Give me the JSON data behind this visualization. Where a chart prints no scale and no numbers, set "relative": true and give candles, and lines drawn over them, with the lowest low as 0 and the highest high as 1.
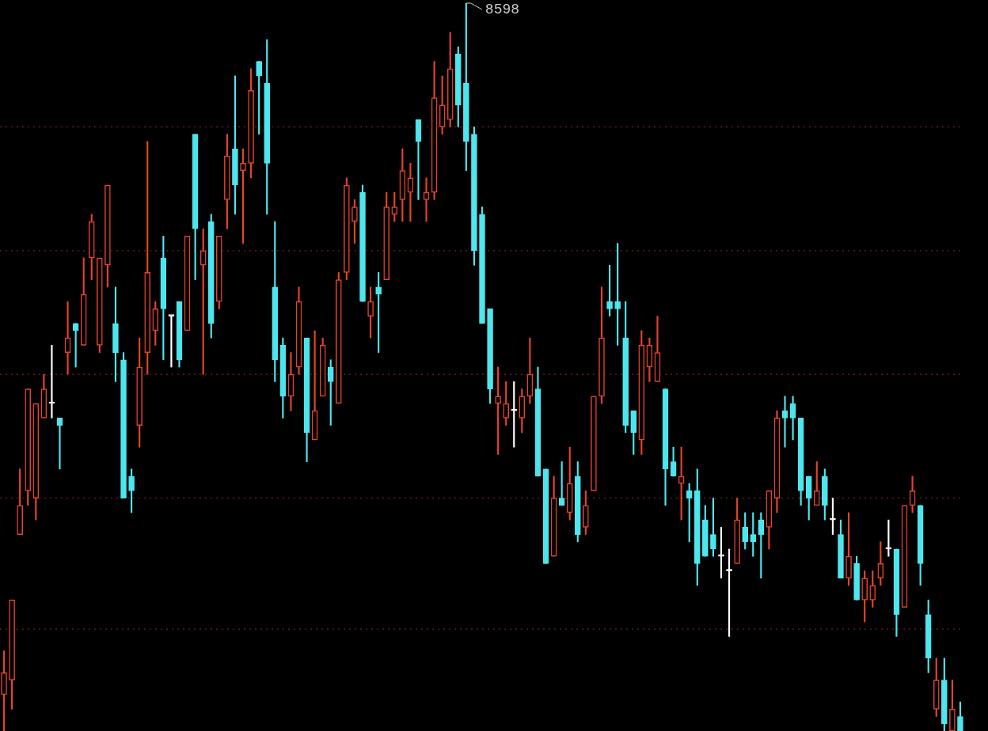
{
  "chart_data": {
    "type": "candlestick",
    "relative": true,
    "legend": false,
    "categories": [
      null,
      null,
      null,
      null,
      null,
      null,
      null,
      null,
      null,
      null,
      null,
      null,
      null,
      null,
      null,
      null,
      null,
      null,
      null,
      null,
      null,
      null,
      null,
      null,
      null,
      null,
      null,
      null,
      null,
      null,
      null,
      null,
      null,
      null,
      null,
      null,
      null,
      null,
      null,
      null,
      null,
      null,
      null,
      null,
      null,
      null,
      null,
      null,
      null,
      null,
      null,
      null,
      null,
      null,
      null,
      null,
      null,
      null,
      null,
      null,
      null,
      null,
      null,
      null,
      null,
      null,
      null,
      null,
      null,
      null,
      null,
      null,
      null,
      null,
      null,
      null,
      null,
      null,
      null,
      null,
      null,
      null,
      null,
      null,
      null,
      null,
      null,
      null,
      null,
      null,
      null,
      null,
      null,
      null,
      null,
      null,
      null,
      null,
      null,
      null,
      null,
      null,
      null,
      null,
      null,
      null,
      null,
      null,
      null,
      null,
      null,
      null,
      null,
      null,
      null,
      null,
      null,
      null,
      null,
      null,
      null
    ],
    "ohlc": [
      [
        0.05,
        0.11,
        0,
        0.08
      ],
      [
        0.07,
        0.18,
        0.03,
        0.18
      ],
      [
        0.27,
        0.36,
        0.27,
        0.31
      ],
      [
        0.33,
        0.47,
        0.31,
        0.47
      ],
      [
        0.32,
        0.45,
        0.29,
        0.45
      ],
      [
        0.43,
        0.49,
        0.43,
        0.47
      ],
      [
        0.45,
        0.53,
        0.43,
        0.45
      ],
      [
        0.43,
        0.43,
        0.36,
        0.42
      ],
      [
        0.52,
        0.59,
        0.49,
        0.54
      ],
      [
        0.56,
        0.56,
        0.5,
        0.55
      ],
      [
        0.53,
        0.65,
        0.53,
        0.6
      ],
      [
        0.65,
        0.71,
        0.62,
        0.7
      ],
      [
        0.53,
        0.65,
        0.52,
        0.65
      ],
      [
        0.64,
        0.75,
        0.61,
        0.75
      ],
      [
        0.56,
        0.61,
        0.48,
        0.52
      ],
      [
        0.51,
        0.52,
        0.32,
        0.32
      ],
      [
        0.35,
        0.36,
        0.3,
        0.33
      ],
      [
        0.42,
        0.54,
        0.39,
        0.5
      ],
      [
        0.52,
        0.81,
        0.49,
        0.63
      ],
      [
        0.55,
        0.59,
        0.53,
        0.58
      ],
      [
        0.65,
        0.68,
        0.51,
        0.58
      ],
      [
        0.57,
        0.57,
        0.5,
        0.57
      ],
      [
        0.59,
        0.59,
        0.5,
        0.51
      ],
      [
        0.55,
        0.68,
        0.55,
        0.68
      ],
      [
        0.82,
        0.82,
        0.62,
        0.69
      ],
      [
        0.64,
        0.69,
        0.49,
        0.66
      ],
      [
        0.7,
        0.71,
        0.54,
        0.56
      ],
      [
        0.59,
        0.68,
        0.58,
        0.68
      ],
      [
        0.73,
        0.82,
        0.69,
        0.79
      ],
      [
        0.8,
        0.9,
        0.71,
        0.75
      ],
      [
        0.77,
        0.8,
        0.67,
        0.78
      ],
      [
        0.78,
        0.91,
        0.76,
        0.88
      ],
      [
        0.92,
        0.92,
        0.82,
        0.9
      ],
      [
        0.89,
        0.95,
        0.71,
        0.78
      ],
      [
        0.61,
        0.7,
        0.48,
        0.51
      ],
      [
        0.53,
        0.54,
        0.43,
        0.46
      ],
      [
        0.46,
        0.52,
        0.44,
        0.49
      ],
      [
        0.5,
        0.61,
        0.49,
        0.59
      ],
      [
        0.54,
        0.54,
        0.37,
        0.41
      ],
      [
        0.4,
        0.55,
        0.4,
        0.44
      ],
      [
        0.46,
        0.54,
        0.46,
        0.53
      ],
      [
        0.5,
        0.51,
        0.42,
        0.48
      ],
      [
        0.45,
        0.63,
        0.45,
        0.62
      ],
      [
        0.63,
        0.76,
        0.62,
        0.75
      ],
      [
        0.7,
        0.73,
        0.67,
        0.72
      ],
      [
        0.74,
        0.75,
        0.59,
        0.59
      ],
      [
        0.57,
        0.61,
        0.54,
        0.59
      ],
      [
        0.61,
        0.63,
        0.52,
        0.6
      ],
      [
        0.62,
        0.74,
        0.62,
        0.72
      ],
      [
        0.71,
        0.74,
        0.7,
        0.72
      ],
      [
        0.73,
        0.8,
        0.7,
        0.77
      ],
      [
        0.74,
        0.78,
        0.7,
        0.76
      ],
      [
        0.84,
        0.84,
        0.73,
        0.81
      ],
      [
        0.73,
        0.76,
        0.7,
        0.74
      ],
      [
        0.74,
        0.92,
        0.73,
        0.87
      ],
      [
        0.83,
        0.9,
        0.82,
        0.86
      ],
      [
        0.84,
        0.96,
        0.83,
        0.91
      ],
      [
        0.93,
        0.94,
        0.83,
        0.86
      ],
      [
        0.89,
        1,
        0.77,
        0.81
      ],
      [
        0.82,
        0.83,
        0.64,
        0.66
      ],
      [
        0.71,
        0.72,
        0.56,
        0.56
      ],
      [
        0.58,
        0.58,
        0.45,
        0.47
      ],
      [
        0.45,
        0.5,
        0.38,
        0.46
      ],
      [
        0.43,
        0.48,
        0.42,
        0.45
      ],
      [
        0.44,
        0.48,
        0.39,
        0.44
      ],
      [
        0.43,
        0.47,
        0.41,
        0.46
      ],
      [
        0.46,
        0.54,
        0.45,
        0.49
      ],
      [
        0.47,
        0.5,
        0.35,
        0.35
      ],
      [
        0.36,
        0.36,
        0.23,
        0.23
      ],
      [
        0.24,
        0.35,
        0.24,
        0.32
      ],
      [
        0.32,
        0.37,
        0.31,
        0.31
      ],
      [
        0.3,
        0.39,
        0.29,
        0.34
      ],
      [
        0.35,
        0.37,
        0.26,
        0.27
      ],
      [
        0.28,
        0.33,
        0.27,
        0.31
      ],
      [
        0.33,
        0.46,
        0.33,
        0.46
      ],
      [
        0.46,
        0.61,
        0.45,
        0.54
      ],
      [
        0.59,
        0.64,
        0.57,
        0.58
      ],
      [
        0.59,
        0.67,
        0.53,
        0.58
      ],
      [
        0.54,
        0.59,
        0.41,
        0.42
      ],
      [
        0.44,
        0.44,
        0.38,
        0.41
      ],
      [
        0.4,
        0.55,
        0.38,
        0.53
      ],
      [
        0.5,
        0.54,
        0.48,
        0.53
      ],
      [
        0.48,
        0.57,
        0.48,
        0.52
      ],
      [
        0.47,
        0.47,
        0.31,
        0.36
      ],
      [
        0.37,
        0.39,
        0.35,
        0.35
      ],
      [
        0.34,
        0.39,
        0.29,
        0.35
      ],
      [
        0.33,
        0.34,
        0.26,
        0.32
      ],
      [
        0.33,
        0.36,
        0.2,
        0.23
      ],
      [
        0.29,
        0.31,
        0.24,
        0.24
      ],
      [
        0.27,
        0.32,
        0.24,
        0.25
      ],
      [
        0.24,
        0.28,
        0.21,
        0.24
      ],
      [
        0.22,
        0.25,
        0.13,
        0.22
      ],
      [
        0.23,
        0.32,
        0.23,
        0.29
      ],
      [
        0.28,
        0.3,
        0.25,
        0.26
      ],
      [
        0.27,
        0.3,
        0.24,
        0.26
      ],
      [
        0.29,
        0.3,
        0.21,
        0.27
      ],
      [
        0.28,
        0.33,
        0.25,
        0.33
      ],
      [
        0.32,
        0.44,
        0.3,
        0.43
      ],
      [
        0.44,
        0.46,
        0.39,
        0.43
      ],
      [
        0.45,
        0.46,
        0.4,
        0.43
      ],
      [
        0.43,
        0.43,
        0.31,
        0.33
      ],
      [
        0.35,
        0.35,
        0.29,
        0.32
      ],
      [
        0.31,
        0.37,
        0.31,
        0.33
      ],
      [
        0.35,
        0.36,
        0.29,
        0.31
      ],
      [
        0.29,
        0.32,
        0.27,
        0.29
      ],
      [
        0.27,
        0.29,
        0.21,
        0.21
      ],
      [
        0.21,
        0.3,
        0.2,
        0.24
      ],
      [
        0.23,
        0.24,
        0.18,
        0.18
      ],
      [
        0.18,
        0.22,
        0.15,
        0.21
      ],
      [
        0.18,
        0.22,
        0.17,
        0.2
      ],
      [
        0.21,
        0.26,
        0.2,
        0.23
      ],
      [
        0.25,
        0.29,
        0.24,
        0.25
      ],
      [
        0.25,
        0.25,
        0.13,
        0.16
      ],
      [
        0.17,
        0.31,
        0.17,
        0.31
      ],
      [
        0.31,
        0.35,
        0.3,
        0.33
      ],
      [
        0.31,
        0.31,
        0.2,
        0.23
      ],
      [
        0.16,
        0.18,
        0.08,
        0.1
      ],
      [
        0.03,
        0.1,
        0.02,
        0.07
      ],
      [
        0.07,
        0.1,
        0,
        0.01
      ],
      [
        0,
        0.07,
        0,
        0.03
      ],
      [
        0.02,
        0.04,
        0,
        0
      ]
    ],
    "colors": [
      "#e5432d",
      "#e5432d",
      "#e5432d",
      "#e5432d",
      "#e5432d",
      "#e5432d",
      "#ffffff",
      "#4ee6ee",
      "#e5432d",
      "#4ee6ee",
      "#e5432d",
      "#e5432d",
      "#e5432d",
      "#e5432d",
      "#4ee6ee",
      "#4ee6ee",
      "#4ee6ee",
      "#e5432d",
      "#e5432d",
      "#e5432d",
      "#4ee6ee",
      "#ffffff",
      "#4ee6ee",
      "#e5432d",
      "#4ee6ee",
      "#e5432d",
      "#4ee6ee",
      "#e5432d",
      "#e5432d",
      "#4ee6ee",
      "#e5432d",
      "#e5432d",
      "#4ee6ee",
      "#4ee6ee",
      "#4ee6ee",
      "#4ee6ee",
      "#e5432d",
      "#e5432d",
      "#4ee6ee",
      "#e5432d",
      "#e5432d",
      "#4ee6ee",
      "#e5432d",
      "#e5432d",
      "#e5432d",
      "#4ee6ee",
      "#e5432d",
      "#4ee6ee",
      "#e5432d",
      "#e5432d",
      "#e5432d",
      "#e5432d",
      "#4ee6ee",
      "#e5432d",
      "#e5432d",
      "#e5432d",
      "#e5432d",
      "#4ee6ee",
      "#4ee6ee",
      "#4ee6ee",
      "#4ee6ee",
      "#4ee6ee",
      "#e5432d",
      "#e5432d",
      "#ffffff",
      "#e5432d",
      "#e5432d",
      "#4ee6ee",
      "#4ee6ee",
      "#e5432d",
      "#4ee6ee",
      "#e5432d",
      "#4ee6ee",
      "#e5432d",
      "#e5432d",
      "#e5432d",
      "#4ee6ee",
      "#4ee6ee",
      "#4ee6ee",
      "#4ee6ee",
      "#e5432d",
      "#e5432d",
      "#e5432d",
      "#4ee6ee",
      "#4ee6ee",
      "#e5432d",
      "#4ee6ee",
      "#4ee6ee",
      "#4ee6ee",
      "#4ee6ee",
      "#ffffff",
      "#ffffff",
      "#e5432d",
      "#4ee6ee",
      "#4ee6ee",
      "#4ee6ee",
      "#e5432d",
      "#e5432d",
      "#4ee6ee",
      "#4ee6ee",
      "#4ee6ee",
      "#4ee6ee",
      "#e5432d",
      "#4ee6ee",
      "#ffffff",
      "#4ee6ee",
      "#e5432d",
      "#4ee6ee",
      "#e5432d",
      "#e5432d",
      "#e5432d",
      "#ffffff",
      "#4ee6ee",
      "#e5432d",
      "#e5432d",
      "#4ee6ee",
      "#4ee6ee",
      "#e5432d",
      "#4ee6ee",
      "#e5432d",
      "#4ee6ee"
    ],
    "ref_lines": [
      {
        "axis": "y",
        "value": 0.83,
        "color": "#7a1f1a",
        "line_style": "dotted"
      },
      {
        "axis": "y",
        "value": 0.66,
        "color": "#7a1f1a",
        "line_style": "dotted"
      },
      {
        "axis": "y",
        "value": 0.49,
        "color": "#7a1f1a",
        "line_style": "dotted"
      },
      {
        "axis": "y",
        "value": 0.32,
        "color": "#7a1f1a",
        "line_style": "dotted"
      },
      {
        "axis": "y",
        "value": 0.14,
        "color": "#7a1f1a",
        "line_style": "dotted"
      }
    ],
    "annotations": [
      "8598"
    ]
  }
}
